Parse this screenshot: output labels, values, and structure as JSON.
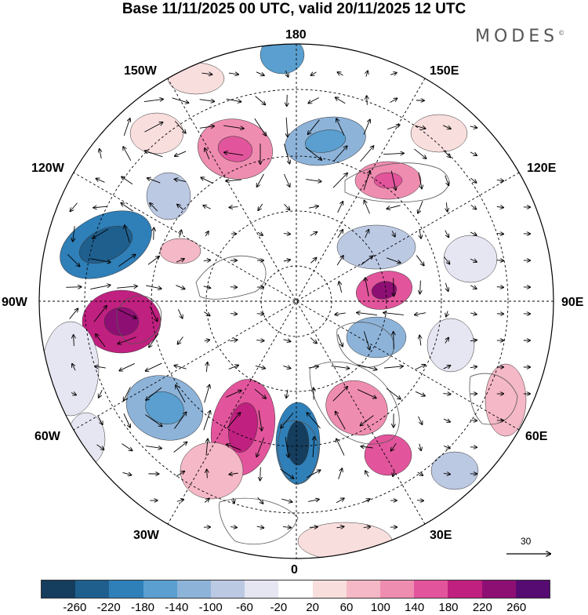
{
  "title": "Base 11/11/2025 00 UTC, valid 20/11/2025 12 UTC",
  "brand": "MODES",
  "brand_mark": "©",
  "longitude_labels": {
    "lon_180": "180",
    "lon_150e": "150E",
    "lon_120e": "120E",
    "lon_90e": "90E",
    "lon_60e": "60E",
    "lon_30e": "30E",
    "lon_0": "0",
    "lon_30w": "30W",
    "lon_60w": "60W",
    "lon_90w": "90W",
    "lon_120w": "120W",
    "lon_150w": "150W"
  },
  "vector_scale": {
    "label": "30"
  },
  "colorbar": {
    "colors": [
      "#153d5e",
      "#1e5f8e",
      "#2f7fb8",
      "#5a9fcf",
      "#8db3d9",
      "#bcc9e3",
      "#e6e6f2",
      "#ffffff",
      "#f9dede",
      "#f5b8c6",
      "#ef8db0",
      "#e2559c",
      "#c0207f",
      "#8e0f74",
      "#560b72"
    ],
    "labels": [
      "-260",
      "-220",
      "-180",
      "-140",
      "-100",
      "-60",
      "-20",
      "20",
      "60",
      "100",
      "140",
      "180",
      "220",
      "260"
    ]
  }
}
